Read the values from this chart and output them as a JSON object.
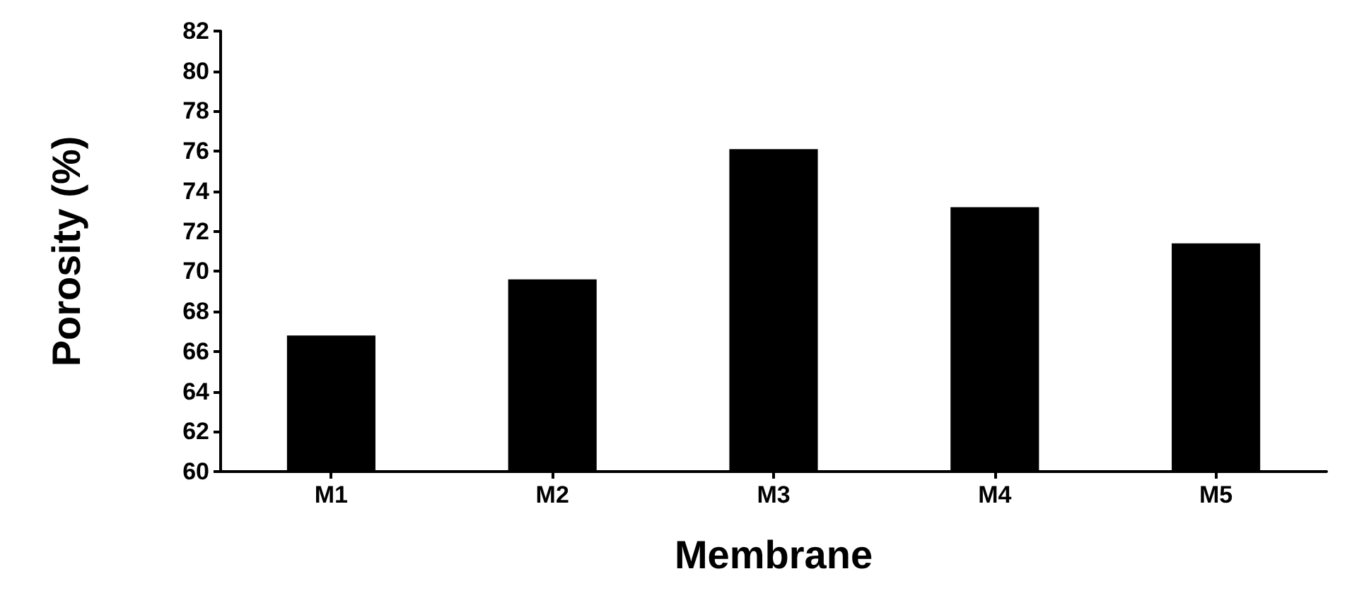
{
  "chart_data": {
    "type": "bar",
    "xlabel": "Membrane",
    "ylabel": "Porosity (%)",
    "categories": [
      "M1",
      "M2",
      "M3",
      "M4",
      "M5"
    ],
    "values": [
      66.8,
      69.6,
      76.1,
      73.2,
      71.4
    ],
    "color": "#000000",
    "ylim": [
      60,
      82
    ],
    "yticks": [
      60,
      62,
      64,
      66,
      68,
      70,
      72,
      74,
      76,
      78,
      80,
      82
    ],
    "grid": false
  }
}
